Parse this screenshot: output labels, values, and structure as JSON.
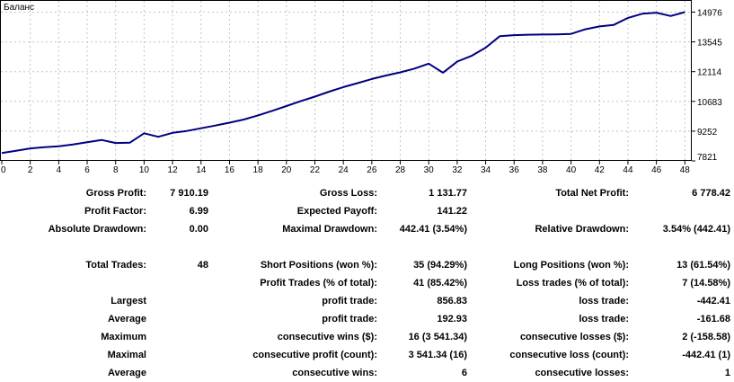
{
  "chart": {
    "legend": "Баланс",
    "line_color": "#000080",
    "grid_color": "#c4c4c4",
    "border_color": "#000000",
    "background": "#ffffff"
  },
  "chart_data": {
    "type": "line",
    "title": "Баланс",
    "xlabel": "",
    "ylabel": "",
    "legend_position": "top-left",
    "grid": true,
    "xlim": [
      0,
      48.5
    ],
    "ylim": [
      7821,
      14976
    ],
    "x_ticks": [
      0,
      2,
      4,
      6,
      8,
      10,
      12,
      14,
      16,
      18,
      20,
      22,
      24,
      26,
      28,
      30,
      32,
      34,
      36,
      38,
      40,
      42,
      44,
      46,
      48
    ],
    "y_ticks": [
      7821,
      9252,
      10683,
      12114,
      13545,
      14976
    ],
    "x": [
      0,
      1,
      2,
      3,
      4,
      5,
      6,
      7,
      8,
      9,
      10,
      11,
      12,
      13,
      14,
      15,
      16,
      17,
      18,
      19,
      20,
      21,
      22,
      23,
      24,
      25,
      26,
      27,
      28,
      29,
      30,
      31,
      32,
      33,
      34,
      35,
      36,
      37,
      38,
      39,
      40,
      41,
      42,
      43,
      44,
      45,
      46,
      47,
      48
    ],
    "values": [
      8200,
      8310,
      8420,
      8480,
      8520,
      8610,
      8720,
      8830,
      8680,
      8700,
      9150,
      8980,
      9170,
      9260,
      9390,
      9520,
      9660,
      9810,
      10010,
      10230,
      10460,
      10690,
      10910,
      11150,
      11370,
      11560,
      11760,
      11930,
      12080,
      12260,
      12500,
      12060,
      12600,
      12870,
      13270,
      13820,
      13870,
      13890,
      13900,
      13910,
      13930,
      14150,
      14290,
      14360,
      14700,
      14900,
      14950,
      14790,
      14978
    ]
  },
  "stats": {
    "rows": [
      {
        "l1": "Gross Profit:",
        "v1": "7 910.19",
        "l2": "Gross Loss:",
        "v2": "1 131.77",
        "l3": "Total Net Profit:",
        "v3": "6 778.42"
      },
      {
        "l1": "Profit Factor:",
        "v1": "6.99",
        "l2": "Expected Payoff:",
        "v2": "141.22",
        "l3": "",
        "v3": ""
      },
      {
        "l1": "Absolute Drawdown:",
        "v1": "0.00",
        "l2": "Maximal Drawdown:",
        "v2": "442.41 (3.54%)",
        "l3": "Relative Drawdown:",
        "v3": "3.54% (442.41)"
      },
      {
        "l1": "Total Trades:",
        "v1": "48",
        "l2": "Short Positions (won %):",
        "v2": "35 (94.29%)",
        "l3": "Long Positions (won %):",
        "v3": "13 (61.54%)"
      },
      {
        "l1": "",
        "v1": "",
        "l2": "Profit Trades (% of total):",
        "v2": "41 (85.42%)",
        "l3": "Loss trades (% of total):",
        "v3": "7 (14.58%)"
      },
      {
        "l1": "Largest",
        "v1": "",
        "l2": "profit trade:",
        "v2": "856.83",
        "l3": "loss trade:",
        "v3": "-442.41"
      },
      {
        "l1": "Average",
        "v1": "",
        "l2": "profit trade:",
        "v2": "192.93",
        "l3": "loss trade:",
        "v3": "-161.68"
      },
      {
        "l1": "Maximum",
        "v1": "",
        "l2": "consecutive wins ($):",
        "v2": "16 (3 541.34)",
        "l3": "consecutive losses ($):",
        "v3": "2 (-158.58)"
      },
      {
        "l1": "Maximal",
        "v1": "",
        "l2": "consecutive profit (count):",
        "v2": "3 541.34 (16)",
        "l3": "consecutive loss (count):",
        "v3": "-442.41 (1)"
      },
      {
        "l1": "Average",
        "v1": "",
        "l2": "consecutive wins:",
        "v2": "6",
        "l3": "consecutive losses:",
        "v3": "1"
      }
    ]
  }
}
